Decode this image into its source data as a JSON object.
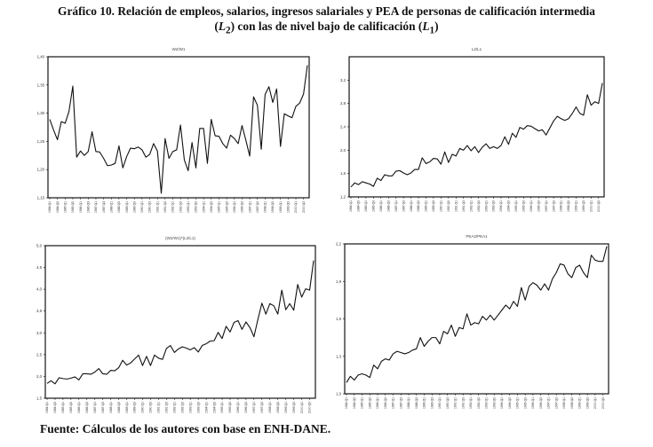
{
  "figure": {
    "title_line1": "Gráfico 10. Relación de empleos, salarios, ingresos salariales y PEA de personas de calificación intermedia",
    "title_line2_parts": [
      "(",
      "L",
      "2",
      ") con las de nivel bajo de calificación (",
      "L",
      "1",
      ")"
    ],
    "source": "Fuente: Cálculos de los autores con base en ENH-DANE."
  },
  "x_tick_labels": [
    "1984 Q1",
    "1984 Q3",
    "1985 Q1",
    "1985 Q3",
    "1986 Q1",
    "1986 Q3",
    "1987 Q1",
    "1987 Q3",
    "1988 Q1",
    "1988 Q3",
    "1989 Q1",
    "1989 Q3",
    "1990 Q1",
    "1990 Q3",
    "1991 Q1",
    "1991 Q3",
    "1992 Q1",
    "1992 Q3",
    "1993 Q1",
    "1993 Q3",
    "1994 Q1",
    "1994 Q3",
    "1995 Q1",
    "1995 Q3",
    "1996 Q1",
    "1996 Q3",
    "1997 Q1",
    "1997 Q3",
    "1998 Q1",
    "1998 Q3",
    "1999 Q1",
    "1999 Q3",
    "2000 Q1",
    "2000 Q3"
  ],
  "chart_data": [
    {
      "type": "line",
      "title": "W2/W1",
      "xlabel": "",
      "ylabel": "",
      "ylim": [
        1.15,
        1.4
      ],
      "yticks": [
        1.15,
        1.2,
        1.25,
        1.3,
        1.35,
        1.4
      ],
      "ytick_labels": [
        "1,15",
        "1,20",
        "1,25",
        "1,30",
        "1,35",
        "1,40"
      ],
      "grid": false,
      "x": "quarterly 1984 Q1 – 2000 Q4",
      "values": [
        1.289,
        1.27,
        1.253,
        1.285,
        1.282,
        1.303,
        1.348,
        1.222,
        1.233,
        1.225,
        1.232,
        1.267,
        1.232,
        1.231,
        1.22,
        1.207,
        1.208,
        1.211,
        1.242,
        1.203,
        1.223,
        1.238,
        1.237,
        1.24,
        1.235,
        1.222,
        1.227,
        1.246,
        1.233,
        1.158,
        1.255,
        1.22,
        1.232,
        1.235,
        1.279,
        1.217,
        1.198,
        1.248,
        1.203,
        1.273,
        1.273,
        1.211,
        1.289,
        1.26,
        1.259,
        1.246,
        1.238,
        1.261,
        1.255,
        1.246,
        1.278,
        1.252,
        1.224,
        1.329,
        1.314,
        1.236,
        1.333,
        1.347,
        1.319,
        1.343,
        1.241,
        1.299,
        1.295,
        1.292,
        1.312,
        1.318,
        1.334,
        1.385
      ]
    },
    {
      "type": "line",
      "title": "L2/L1",
      "xlabel": "",
      "ylabel": "",
      "ylim": [
        1.2,
        3.6
      ],
      "yticks": [
        1.2,
        1.6,
        2.0,
        2.4,
        2.8,
        3.2
      ],
      "ytick_labels": [
        "1,2",
        "1,6",
        "2,0",
        "2,4",
        "2,8",
        "3,2"
      ],
      "grid": false,
      "x": "quarterly 1984 Q1 – 2000 Q4",
      "values": [
        1.37,
        1.44,
        1.41,
        1.46,
        1.44,
        1.42,
        1.38,
        1.52,
        1.48,
        1.58,
        1.56,
        1.56,
        1.64,
        1.65,
        1.61,
        1.58,
        1.61,
        1.67,
        1.67,
        1.87,
        1.77,
        1.8,
        1.86,
        1.85,
        1.76,
        1.97,
        1.79,
        1.93,
        1.9,
        2.03,
        2.0,
        2.08,
        1.99,
        2.06,
        1.96,
        2.05,
        2.11,
        2.03,
        2.06,
        2.03,
        2.08,
        2.23,
        2.1,
        2.29,
        2.22,
        2.39,
        2.36,
        2.42,
        2.41,
        2.37,
        2.33,
        2.35,
        2.26,
        2.38,
        2.5,
        2.58,
        2.54,
        2.51,
        2.54,
        2.63,
        2.74,
        2.63,
        2.6,
        2.95,
        2.77,
        2.83,
        2.8,
        3.15
      ]
    },
    {
      "type": "line",
      "title": "(W2/W1)*(L2/L1)",
      "xlabel": "",
      "ylabel": "",
      "ylim": [
        1.5,
        5.0
      ],
      "yticks": [
        1.5,
        2.0,
        2.5,
        3.0,
        3.5,
        4.0,
        4.5,
        5.0
      ],
      "ytick_labels": [
        "1,5",
        "2,0",
        "2,5",
        "3,0",
        "3,5",
        "4,0",
        "4,5",
        "5,0"
      ],
      "grid": false,
      "x": "quarterly 1984 Q1 – 2000 Q4",
      "values": [
        1.84,
        1.9,
        1.83,
        1.97,
        1.95,
        1.94,
        1.96,
        1.99,
        1.92,
        2.06,
        2.06,
        2.05,
        2.1,
        2.18,
        2.06,
        2.05,
        2.14,
        2.13,
        2.2,
        2.37,
        2.26,
        2.31,
        2.4,
        2.49,
        2.25,
        2.46,
        2.25,
        2.49,
        2.42,
        2.39,
        2.64,
        2.71,
        2.55,
        2.63,
        2.68,
        2.65,
        2.61,
        2.66,
        2.56,
        2.71,
        2.75,
        2.81,
        2.82,
        3.01,
        2.87,
        3.15,
        3.02,
        3.24,
        3.28,
        3.08,
        3.25,
        3.12,
        2.91,
        3.31,
        3.68,
        3.43,
        3.67,
        3.62,
        3.43,
        3.98,
        3.53,
        3.67,
        3.52,
        4.11,
        3.82,
        4.01,
        3.98,
        4.66
      ]
    },
    {
      "type": "line",
      "title": "PEA2/PEA1",
      "xlabel": "",
      "ylabel": "",
      "ylim": [
        1.0,
        2.2
      ],
      "yticks": [
        1.0,
        1.3,
        1.6,
        1.9,
        2.2
      ],
      "ytick_labels": [
        "1,0",
        "1,3",
        "1,6",
        "1,9",
        "2,2"
      ],
      "grid": false,
      "x": "quarterly 1984 Q1 – 2000 Q4",
      "values": [
        1.09,
        1.14,
        1.11,
        1.15,
        1.16,
        1.15,
        1.13,
        1.23,
        1.2,
        1.26,
        1.28,
        1.27,
        1.32,
        1.34,
        1.33,
        1.32,
        1.33,
        1.35,
        1.36,
        1.45,
        1.38,
        1.42,
        1.45,
        1.45,
        1.4,
        1.5,
        1.48,
        1.55,
        1.46,
        1.53,
        1.52,
        1.64,
        1.55,
        1.57,
        1.56,
        1.62,
        1.59,
        1.63,
        1.59,
        1.63,
        1.67,
        1.71,
        1.68,
        1.74,
        1.7,
        1.85,
        1.75,
        1.86,
        1.89,
        1.87,
        1.83,
        1.88,
        1.83,
        1.92,
        1.97,
        2.04,
        2.03,
        1.96,
        1.93,
        2.01,
        2.03,
        1.97,
        1.93,
        2.11,
        2.07,
        2.06,
        2.06,
        2.18
      ]
    }
  ]
}
